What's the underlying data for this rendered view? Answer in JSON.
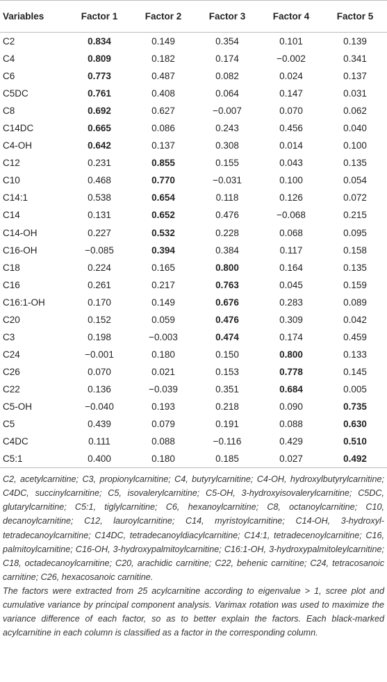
{
  "table": {
    "header": [
      "Variables",
      "Factor 1",
      "Factor 2",
      "Factor 3",
      "Factor 4",
      "Factor 5"
    ],
    "rows": [
      {
        "variable": "C2",
        "values": [
          "0.834",
          "0.149",
          "0.354",
          "0.101",
          "0.139"
        ],
        "bold": 0
      },
      {
        "variable": "C4",
        "values": [
          "0.809",
          "0.182",
          "0.174",
          "−0.002",
          "0.341"
        ],
        "bold": 0
      },
      {
        "variable": "C6",
        "values": [
          "0.773",
          "0.487",
          "0.082",
          "0.024",
          "0.137"
        ],
        "bold": 0
      },
      {
        "variable": "C5DC",
        "values": [
          "0.761",
          "0.408",
          "0.064",
          "0.147",
          "0.031"
        ],
        "bold": 0
      },
      {
        "variable": "C8",
        "values": [
          "0.692",
          "0.627",
          "−0.007",
          "0.070",
          "0.062"
        ],
        "bold": 0
      },
      {
        "variable": "C14DC",
        "values": [
          "0.665",
          "0.086",
          "0.243",
          "0.456",
          "0.040"
        ],
        "bold": 0
      },
      {
        "variable": "C4-OH",
        "values": [
          "0.642",
          "0.137",
          "0.308",
          "0.014",
          "0.100"
        ],
        "bold": 0
      },
      {
        "variable": "C12",
        "values": [
          "0.231",
          "0.855",
          "0.155",
          "0.043",
          "0.135"
        ],
        "bold": 1
      },
      {
        "variable": "C10",
        "values": [
          "0.468",
          "0.770",
          "−0.031",
          "0.100",
          "0.054"
        ],
        "bold": 1
      },
      {
        "variable": "C14:1",
        "values": [
          "0.538",
          "0.654",
          "0.118",
          "0.126",
          "0.072"
        ],
        "bold": 1
      },
      {
        "variable": "C14",
        "values": [
          "0.131",
          "0.652",
          "0.476",
          "−0.068",
          "0.215"
        ],
        "bold": 1
      },
      {
        "variable": "C14-OH",
        "values": [
          "0.227",
          "0.532",
          "0.228",
          "0.068",
          "0.095"
        ],
        "bold": 1
      },
      {
        "variable": "C16-OH",
        "values": [
          "−0.085",
          "0.394",
          "0.384",
          "0.117",
          "0.158"
        ],
        "bold": 1
      },
      {
        "variable": "C18",
        "values": [
          "0.224",
          "0.165",
          "0.800",
          "0.164",
          "0.135"
        ],
        "bold": 2
      },
      {
        "variable": "C16",
        "values": [
          "0.261",
          "0.217",
          "0.763",
          "0.045",
          "0.159"
        ],
        "bold": 2
      },
      {
        "variable": "C16:1-OH",
        "values": [
          "0.170",
          "0.149",
          "0.676",
          "0.283",
          "0.089"
        ],
        "bold": 2
      },
      {
        "variable": "C20",
        "values": [
          "0.152",
          "0.059",
          "0.476",
          "0.309",
          "0.042"
        ],
        "bold": 2
      },
      {
        "variable": "C3",
        "values": [
          "0.198",
          "−0.003",
          "0.474",
          "0.174",
          "0.459"
        ],
        "bold": 2
      },
      {
        "variable": "C24",
        "values": [
          "−0.001",
          "0.180",
          "0.150",
          "0.800",
          "0.133"
        ],
        "bold": 3
      },
      {
        "variable": "C26",
        "values": [
          "0.070",
          "0.021",
          "0.153",
          "0.778",
          "0.145"
        ],
        "bold": 3
      },
      {
        "variable": "C22",
        "values": [
          "0.136",
          "−0.039",
          "0.351",
          "0.684",
          "0.005"
        ],
        "bold": 3
      },
      {
        "variable": "C5-OH",
        "values": [
          "−0.040",
          "0.193",
          "0.218",
          "0.090",
          "0.735"
        ],
        "bold": 4
      },
      {
        "variable": "C5",
        "values": [
          "0.439",
          "0.079",
          "0.191",
          "0.088",
          "0.630"
        ],
        "bold": 4
      },
      {
        "variable": "C4DC",
        "values": [
          "0.111",
          "0.088",
          "−0.116",
          "0.429",
          "0.510"
        ],
        "bold": 4
      },
      {
        "variable": "C5:1",
        "values": [
          "0.400",
          "0.180",
          "0.185",
          "0.027",
          "0.492"
        ],
        "bold": 4
      }
    ]
  },
  "footnote": {
    "abbreviations": "C2, acetylcarnitine; C3, propionylcarnitine; C4, butyrylcarnitine; C4-OH, hydroxylbutyrylcarnitine; C4DC, succinylcarnitine; C5, isovalerylcarnitine; C5-OH, 3-hydroxyisovalerylcarnitine; C5DC, glutarylcarnitine; C5:1, tiglylcarnitine; C6, hexanoylcarnitine; C8, octanoylcarnitine; C10, decanoylcarnitine; C12, lauroylcarnitine; C14, myristoylcarnitine; C14-OH, 3-hydroxyl-tetradecanoylcarnitine; C14DC, tetradecanoyldiacylcarnitine; C14:1, tetradecenoylcarnitine; C16, palmitoylcarnitine; C16-OH, 3-hydroxypalmitoylcarnitine; C16:1-OH, 3-hydroxypalmitoleylcarnitine; C18, octadecanoylcarnitine; C20, arachidic carnitine; C22, behenic carnitine; C24, tetracosanoic carnitine; C26, hexacosanoic carnitine.",
    "note": "The factors were extracted from 25 acylcarnitine according to eigenvalue > 1, scree plot and cumulative variance by principal component analysis. Varimax rotation was used to maximize the variance difference of each factor, so as to better explain the factors. Each black-marked acylcarnitine in each column is classified as a factor in the corresponding column."
  }
}
